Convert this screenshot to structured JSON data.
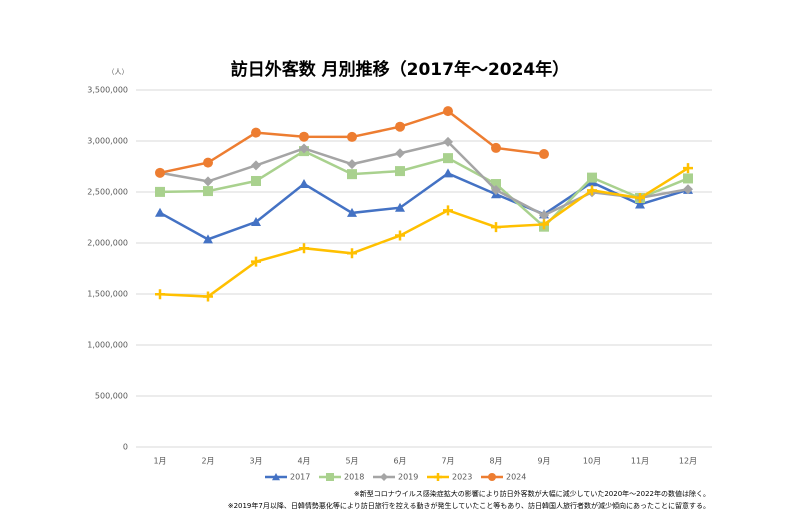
{
  "chart_data": {
    "type": "line",
    "title": "訪日外客数 月別推移（2017年～2024年）",
    "y_unit": "（人）",
    "categories": [
      "1月",
      "2月",
      "3月",
      "4月",
      "5月",
      "6月",
      "7月",
      "8月",
      "9月",
      "10月",
      "11月",
      "12月"
    ],
    "series": [
      {
        "name": "2017",
        "color": "#4472c4",
        "marker": "triangle",
        "values": [
          2296000,
          2036000,
          2206000,
          2579000,
          2295000,
          2346000,
          2682000,
          2478000,
          2281000,
          2595000,
          2378000,
          2521000
        ]
      },
      {
        "name": "2018",
        "color": "#a9d18e",
        "marker": "square",
        "values": [
          2501000,
          2509000,
          2608000,
          2901000,
          2675000,
          2705000,
          2832000,
          2578000,
          2160000,
          2641000,
          2441000,
          2633000
        ]
      },
      {
        "name": "2019",
        "color": "#a5a5a5",
        "marker": "diamond",
        "values": [
          2689000,
          2604000,
          2761000,
          2927000,
          2773000,
          2880000,
          2991000,
          2520000,
          2272000,
          2497000,
          2442000,
          2527000
        ]
      },
      {
        "name": "2023",
        "color": "#ffc000",
        "marker": "plus",
        "values": [
          1497000,
          1475000,
          1817000,
          1949000,
          1899000,
          2073000,
          2320000,
          2156000,
          2182000,
          2516000,
          2441000,
          2734000
        ]
      },
      {
        "name": "2024",
        "color": "#ed7d31",
        "marker": "circle",
        "values": [
          2688000,
          2788000,
          3082000,
          3042000,
          3040000,
          3140000,
          3293000,
          2932000,
          2872000,
          null,
          null,
          null
        ]
      }
    ],
    "ylim": [
      0,
      3500000
    ],
    "yticks": [
      0,
      {
        "value": 500000,
        "label": "500,000"
      },
      {
        "value": 1000000,
        "label": "1,000,000"
      },
      {
        "value": 1500000,
        "label": "1,500,000"
      },
      {
        "value": 2000000,
        "label": "2,000,000"
      },
      {
        "value": 2500000,
        "label": "2,500,000"
      },
      {
        "value": 3000000,
        "label": "3,000,000"
      },
      {
        "value": 3500000,
        "label": "3,500,000"
      }
    ],
    "grid": true,
    "legend": "bottom",
    "notes": [
      "※新型コロナウイルス感染症拡大の影響により訪日外客数が大幅に減少していた2020年～2022年の数値は除く。",
      "※2019年7月以降、日韓情勢悪化等により訪日旅行を控える動きが発生していたこと等もあり、訪日韓国人旅行者数が減少傾向にあったことに留意する。"
    ]
  }
}
